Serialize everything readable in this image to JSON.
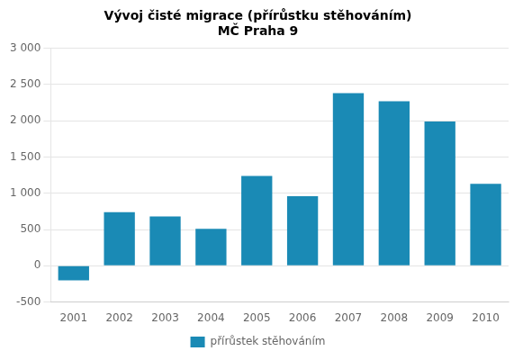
{
  "chart_data": {
    "type": "bar",
    "title": "Vývoj čisté migrace (přírůstku stěhováním)\nMČ Praha 9",
    "categories": [
      "2001",
      "2002",
      "2003",
      "2004",
      "2005",
      "2006",
      "2007",
      "2008",
      "2009",
      "2010"
    ],
    "series": [
      {
        "name": "přírůstek stěhováním",
        "color": "#1a8ab5",
        "values": [
          -200,
          740,
          680,
          510,
          1240,
          960,
          2380,
          2270,
          1990,
          1130
        ]
      }
    ],
    "ylim": [
      -500,
      3000
    ],
    "yticks": [
      -500,
      0,
      500,
      {
        "value": 1000,
        "label": "1 000"
      },
      {
        "value": 1500,
        "label": "1 500"
      },
      {
        "value": 2000,
        "label": "2 000"
      },
      {
        "value": 2500,
        "label": "2 500"
      },
      {
        "value": 3000,
        "label": "3 000"
      }
    ],
    "grid": true,
    "legend": "bottom"
  }
}
